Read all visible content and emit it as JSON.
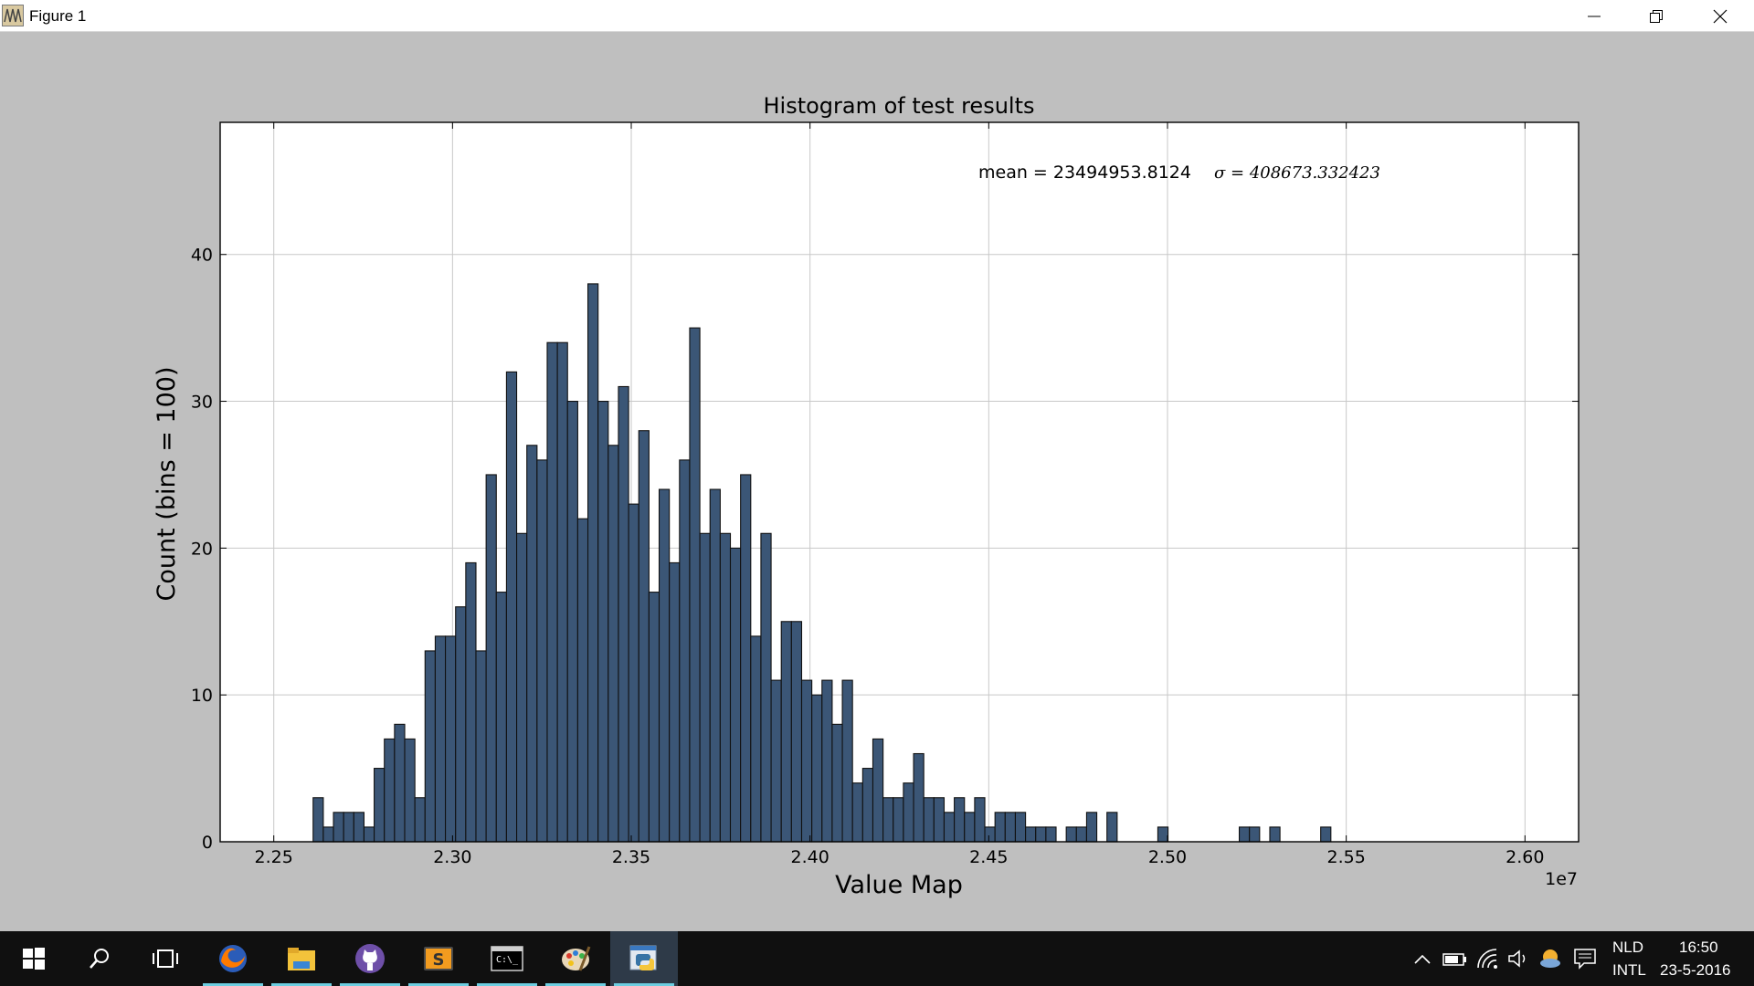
{
  "window": {
    "title": "Figure 1",
    "app_icon": "matplotlib-figure-icon",
    "controls": [
      "minimize-icon",
      "maximize-icon",
      "close-icon"
    ]
  },
  "colors": {
    "bar_fill": "#3b5676",
    "bar_edge": "#111111",
    "figure_bg": "#bfbfbf",
    "axes_bg": "#ffffff",
    "grid": "#c8c8c8",
    "taskbar_bg": "#101010",
    "taskbar_indicator": "#6ccde0"
  },
  "chart_data": {
    "type": "bar",
    "title": "Histogram of test results",
    "xlabel": "Value Map",
    "ylabel": "Count (bins = 100)",
    "x_offset_label": "1e7",
    "annotation": {
      "mean_text": "mean = 23494953.8124",
      "sigma_text": "σ = 408673.332423"
    },
    "xlim": [
      2.235,
      2.615
    ],
    "ylim": [
      0,
      49
    ],
    "xticks": [
      2.25,
      2.3,
      2.35,
      2.4,
      2.45,
      2.5,
      2.55,
      2.6
    ],
    "xtick_labels": [
      "2.25",
      "2.30",
      "2.35",
      "2.40",
      "2.45",
      "2.50",
      "2.55",
      "2.60"
    ],
    "yticks": [
      0,
      10,
      20,
      30,
      40
    ],
    "ytick_labels": [
      "0",
      "10",
      "20",
      "30",
      "40"
    ],
    "grid": true,
    "bin_start": 2.261,
    "bin_width": 0.002847,
    "counts": [
      3,
      1,
      2,
      2,
      2,
      1,
      5,
      7,
      8,
      7,
      3,
      13,
      14,
      14,
      16,
      19,
      13,
      25,
      17,
      32,
      21,
      27,
      26,
      34,
      34,
      30,
      22,
      38,
      30,
      27,
      31,
      23,
      28,
      17,
      24,
      19,
      26,
      35,
      21,
      24,
      21,
      20,
      25,
      14,
      21,
      11,
      15,
      15,
      11,
      10,
      11,
      8,
      11,
      4,
      5,
      7,
      3,
      3,
      4,
      6,
      3,
      3,
      2,
      3,
      2,
      3,
      1,
      2,
      2,
      2,
      1,
      1,
      1,
      0,
      1,
      1,
      2,
      0,
      2,
      0,
      0,
      0,
      0,
      1,
      0,
      0,
      0,
      0,
      0,
      0,
      0,
      1,
      1,
      0,
      1,
      0,
      0,
      0,
      0,
      1
    ]
  },
  "taskbar": {
    "apps": [
      {
        "name": "windows-start-icon",
        "running": false
      },
      {
        "name": "search-icon",
        "running": false
      },
      {
        "name": "task-view-icon",
        "running": false
      },
      {
        "name": "firefox-icon",
        "running": true
      },
      {
        "name": "file-explorer-icon",
        "running": true
      },
      {
        "name": "github-icon",
        "running": true
      },
      {
        "name": "sublime-text-icon",
        "running": true
      },
      {
        "name": "command-prompt-icon",
        "running": true
      },
      {
        "name": "paint-icon",
        "running": true
      },
      {
        "name": "python-icon",
        "running": true
      }
    ],
    "tray": {
      "language_top": "NLD",
      "language_bottom": "INTL",
      "time": "16:50",
      "date": "23-5-2016"
    }
  }
}
